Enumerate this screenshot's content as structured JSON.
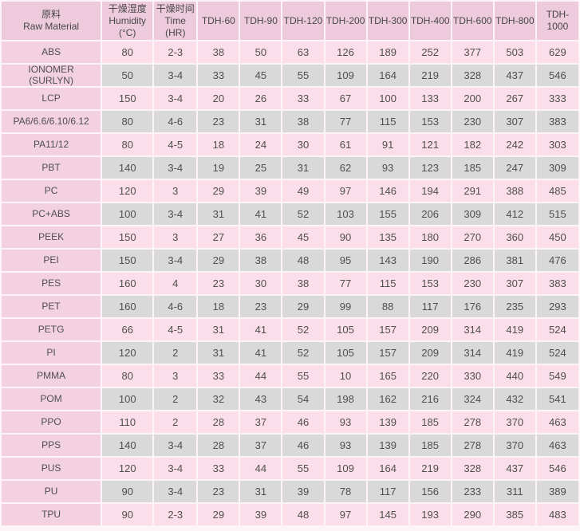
{
  "colors": {
    "header_bg": "#edcbdc",
    "material_column_bg": "#f3d1e1",
    "row_pink_bg": "#fbdeea",
    "row_gray_bg": "#d9d9d9",
    "grid_gap": "#fdf4f8",
    "text": "#4f4f4f"
  },
  "table": {
    "headers": [
      "原料\nRaw Material",
      "干燥湿度\nHumidity\n(°C)",
      "干燥时间\nTime\n(HR)",
      "TDH-60",
      "TDH-90",
      "TDH-120",
      "TDH-200",
      "TDH-300",
      "TDH-400",
      "TDH-600",
      "TDH-800",
      "TDH-1000"
    ],
    "rows": [
      {
        "material": "ABS",
        "values": [
          "80",
          "2-3",
          "38",
          "50",
          "63",
          "126",
          "189",
          "252",
          "377",
          "503",
          "629"
        ]
      },
      {
        "material": "IONOMER\n(SURLYN)",
        "values": [
          "50",
          "3-4",
          "33",
          "45",
          "55",
          "109",
          "164",
          "219",
          "328",
          "437",
          "546"
        ]
      },
      {
        "material": "LCP",
        "values": [
          "150",
          "3-4",
          "20",
          "26",
          "33",
          "67",
          "100",
          "133",
          "200",
          "267",
          "333"
        ]
      },
      {
        "material": "PA6/6.6/6.10/6.12",
        "values": [
          "80",
          "4-6",
          "23",
          "31",
          "38",
          "77",
          "115",
          "153",
          "230",
          "307",
          "383"
        ]
      },
      {
        "material": "PA11/12",
        "values": [
          "80",
          "4-5",
          "18",
          "24",
          "30",
          "61",
          "91",
          "121",
          "182",
          "242",
          "303"
        ]
      },
      {
        "material": "PBT",
        "values": [
          "140",
          "3-4",
          "19",
          "25",
          "31",
          "62",
          "93",
          "123",
          "185",
          "247",
          "309"
        ]
      },
      {
        "material": "PC",
        "values": [
          "120",
          "3",
          "29",
          "39",
          "49",
          "97",
          "146",
          "194",
          "291",
          "388",
          "485"
        ]
      },
      {
        "material": "PC+ABS",
        "values": [
          "100",
          "3-4",
          "31",
          "41",
          "52",
          "103",
          "155",
          "206",
          "309",
          "412",
          "515"
        ]
      },
      {
        "material": "PEEK",
        "values": [
          "150",
          "3",
          "27",
          "36",
          "45",
          "90",
          "135",
          "180",
          "270",
          "360",
          "450"
        ]
      },
      {
        "material": "PEI",
        "values": [
          "150",
          "3-4",
          "29",
          "38",
          "48",
          "95",
          "143",
          "190",
          "286",
          "381",
          "476"
        ]
      },
      {
        "material": "PES",
        "values": [
          "160",
          "4",
          "23",
          "30",
          "38",
          "77",
          "115",
          "153",
          "230",
          "307",
          "383"
        ]
      },
      {
        "material": "PET",
        "values": [
          "160",
          "4-6",
          "18",
          "23",
          "29",
          "99",
          "88",
          "117",
          "176",
          "235",
          "293"
        ]
      },
      {
        "material": "PETG",
        "values": [
          "66",
          "4-5",
          "31",
          "41",
          "52",
          "105",
          "157",
          "209",
          "314",
          "419",
          "524"
        ]
      },
      {
        "material": "PI",
        "values": [
          "120",
          "2",
          "31",
          "41",
          "52",
          "105",
          "157",
          "209",
          "314",
          "419",
          "524"
        ]
      },
      {
        "material": "PMMA",
        "values": [
          "80",
          "3",
          "33",
          "44",
          "55",
          "10",
          "165",
          "220",
          "330",
          "440",
          "549"
        ]
      },
      {
        "material": "POM",
        "values": [
          "100",
          "2",
          "32",
          "43",
          "54",
          "198",
          "162",
          "216",
          "324",
          "432",
          "541"
        ]
      },
      {
        "material": "PPO",
        "values": [
          "110",
          "2",
          "28",
          "37",
          "46",
          "93",
          "139",
          "185",
          "278",
          "370",
          "463"
        ]
      },
      {
        "material": "PPS",
        "values": [
          "140",
          "3-4",
          "28",
          "37",
          "46",
          "93",
          "139",
          "185",
          "278",
          "370",
          "463"
        ]
      },
      {
        "material": "PUS",
        "values": [
          "120",
          "3-4",
          "33",
          "44",
          "55",
          "109",
          "164",
          "219",
          "328",
          "437",
          "546"
        ]
      },
      {
        "material": "PU",
        "values": [
          "90",
          "3-4",
          "23",
          "31",
          "39",
          "78",
          "117",
          "156",
          "233",
          "311",
          "389"
        ]
      },
      {
        "material": "TPU",
        "values": [
          "90",
          "2-3",
          "29",
          "39",
          "48",
          "97",
          "145",
          "193",
          "290",
          "385",
          "483"
        ]
      }
    ]
  }
}
